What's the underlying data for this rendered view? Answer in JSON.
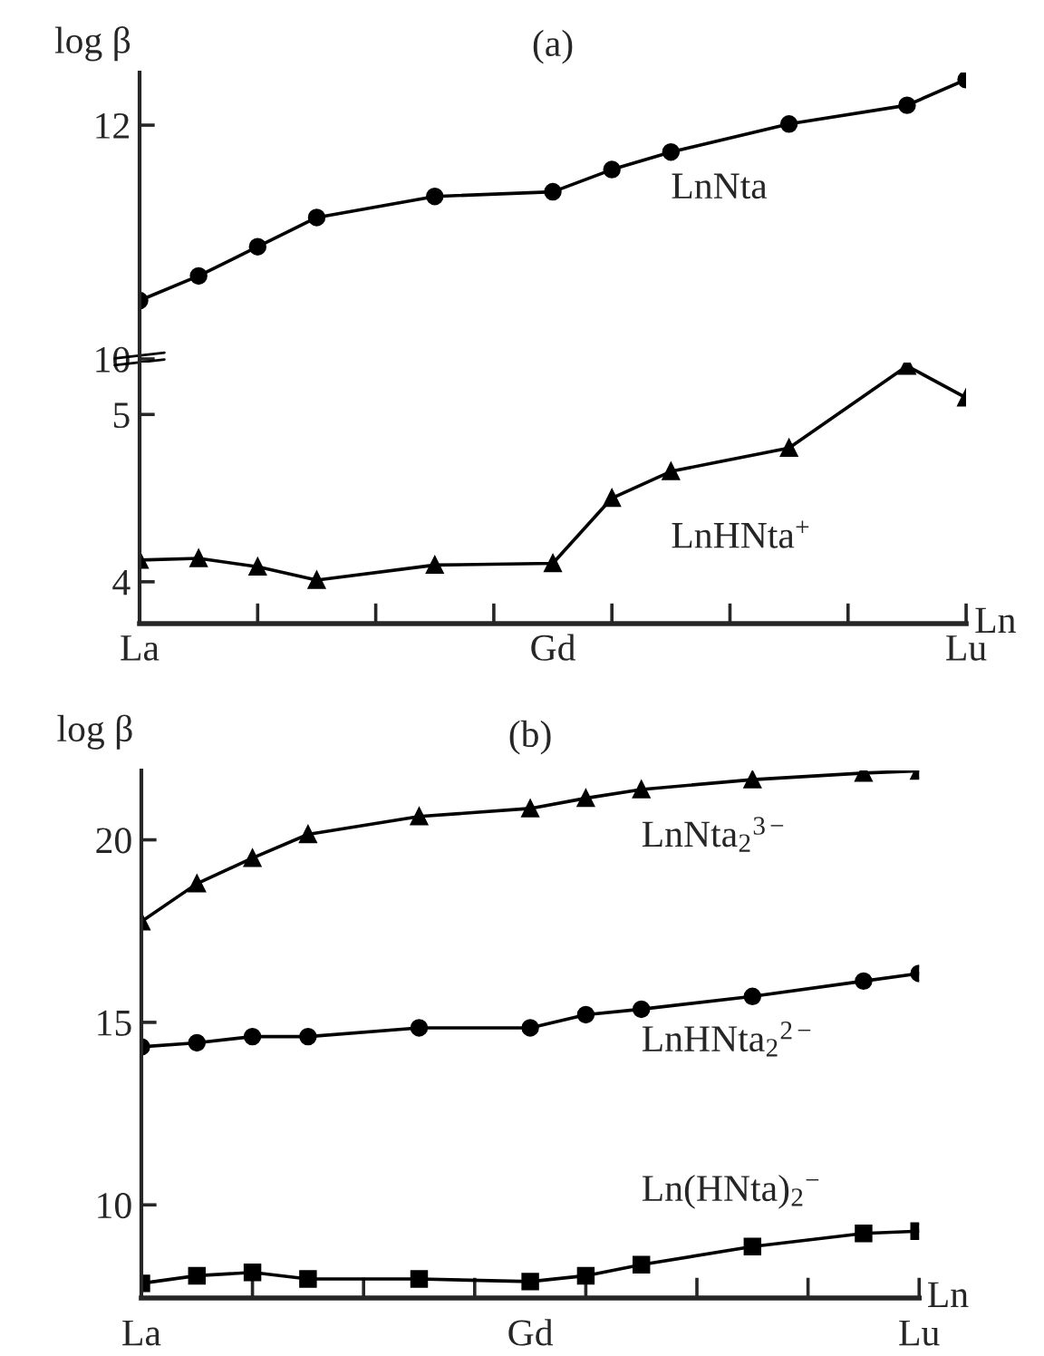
{
  "chart_data": [
    {
      "type": "line",
      "title": "(a)",
      "ylabel": "log β",
      "ylim": [
        10,
        12.45
      ],
      "yticks": [
        10,
        12
      ],
      "tick_labels": "y",
      "grid": false,
      "legend": false,
      "series": [
        {
          "name": "LnNta",
          "color": "#000000",
          "marker": "circle",
          "values": [
            10.5,
            10.71,
            10.96,
            11.21,
            null,
            11.39,
            null,
            11.43,
            11.62,
            11.77,
            null,
            12.01,
            null,
            12.17,
            12.39
          ]
        }
      ]
    },
    {
      "type": "line",
      "xlabel": "Ln",
      "categories": [
        "La",
        null,
        null,
        null,
        null,
        null,
        null,
        "Gd",
        null,
        null,
        null,
        null,
        null,
        null,
        "Lu"
      ],
      "ylim": [
        3.75,
        5.31
      ],
      "yticks": [
        4,
        5
      ],
      "grid": false,
      "legend": false,
      "series": [
        {
          "name": "LnHNta$^{+}$",
          "color": "#000000",
          "marker": "triangle",
          "values": [
            4.13,
            4.14,
            4.09,
            4.01,
            null,
            4.1,
            null,
            4.11,
            4.5,
            4.66,
            null,
            4.8,
            null,
            5.29,
            5.1
          ]
        }
      ]
    },
    {
      "type": "line",
      "title": "(b)",
      "ylabel": "log β",
      "xlabel": "Ln",
      "categories": [
        "La",
        null,
        null,
        null,
        null,
        null,
        null,
        "Gd",
        null,
        null,
        null,
        null,
        null,
        null,
        "Lu"
      ],
      "ylim": [
        7.45,
        21.9
      ],
      "yticks": [
        10,
        15,
        20
      ],
      "grid": false,
      "legend": false,
      "series": [
        {
          "name": "LnNta$_{2}$$^{3−}$",
          "color": "#000000",
          "marker": "triangle",
          "values": [
            17.76,
            18.8,
            19.5,
            20.15,
            null,
            20.64,
            null,
            20.86,
            21.14,
            21.38,
            null,
            21.65,
            null,
            21.83,
            21.89
          ]
        },
        {
          "name": "LnHNta$_{2}$$^{2−}$",
          "color": "#000000",
          "marker": "circle",
          "values": [
            14.33,
            14.44,
            14.61,
            14.61,
            null,
            14.85,
            null,
            14.85,
            15.21,
            15.36,
            null,
            15.71,
            null,
            16.13,
            16.34
          ]
        },
        {
          "name": "Ln(HNta)$_{2}$$^{−}$",
          "color": "#000000",
          "marker": "square",
          "values": [
            7.85,
            8.06,
            8.15,
            7.97,
            null,
            7.97,
            null,
            7.9,
            8.06,
            8.36,
            null,
            8.86,
            null,
            9.22,
            9.28
          ]
        }
      ]
    }
  ]
}
